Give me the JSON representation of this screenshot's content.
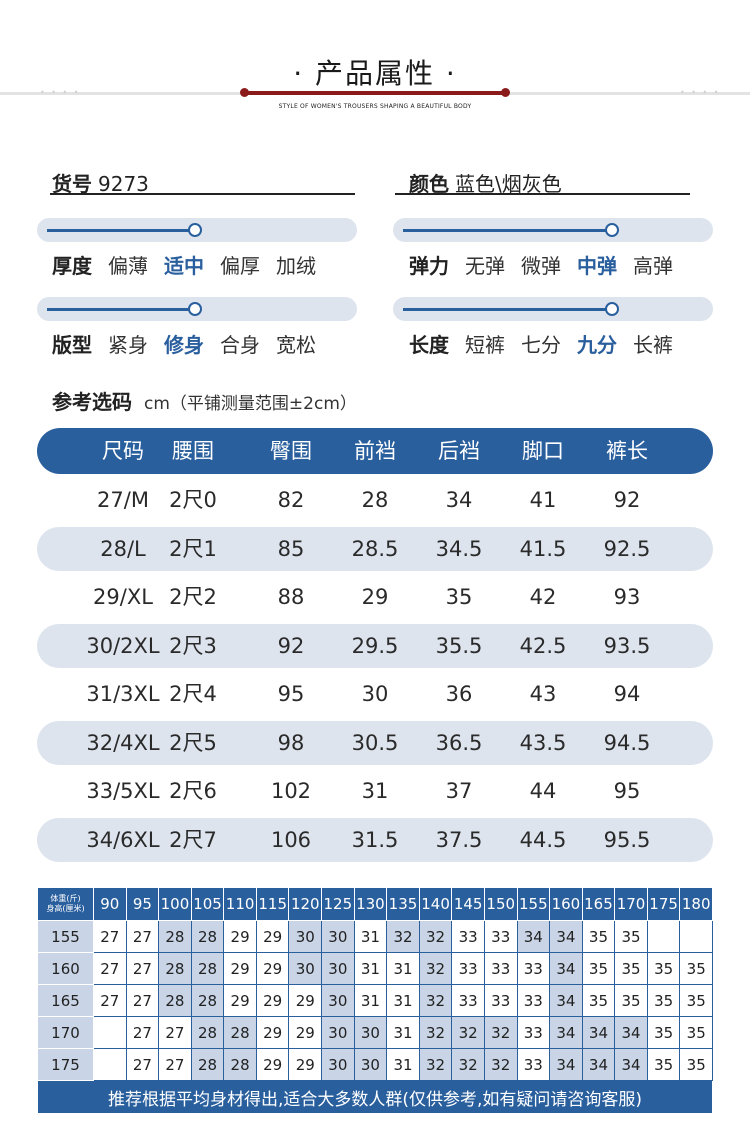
{
  "header": {
    "title": "· 产品属性 ·",
    "subtitle": "STYLE OF WOMEN'S TROUSERS SHAPING A BEAUTIFUL BODY",
    "accent_color": "#8b1a1a"
  },
  "info": {
    "item_no_label": "货号",
    "item_no_value": "9273",
    "color_label": "颜色",
    "color_value": "蓝色\\烟灰色"
  },
  "attributes": [
    {
      "label": "厚度",
      "options": [
        "偏薄",
        "适中",
        "偏厚",
        "加绒"
      ],
      "selected": 1
    },
    {
      "label": "弹力",
      "options": [
        "无弹",
        "微弹",
        "中弹",
        "高弹"
      ],
      "selected": 2
    },
    {
      "label": "版型",
      "options": [
        "紧身",
        "修身",
        "合身",
        "宽松"
      ],
      "selected": 1
    },
    {
      "label": "长度",
      "options": [
        "短裤",
        "七分",
        "九分",
        "长裤"
      ],
      "selected": 2
    }
  ],
  "reference": {
    "label": "参考选码",
    "note": "cm（平铺测量范围±2cm）"
  },
  "size_table": {
    "headers": [
      "尺码",
      "腰围",
      "臀围",
      "前裆",
      "后裆",
      "脚口",
      "裤长"
    ],
    "rows": [
      [
        "27/M",
        "2尺0",
        "82",
        "28",
        "34",
        "41",
        "92"
      ],
      [
        "28/L",
        "2尺1",
        "85",
        "28.5",
        "34.5",
        "41.5",
        "92.5"
      ],
      [
        "29/XL",
        "2尺2",
        "88",
        "29",
        "35",
        "42",
        "93"
      ],
      [
        "30/2XL",
        "2尺3",
        "92",
        "29.5",
        "35.5",
        "42.5",
        "93.5"
      ],
      [
        "31/3XL",
        "2尺4",
        "95",
        "30",
        "36",
        "43",
        "94"
      ],
      [
        "32/4XL",
        "2尺5",
        "98",
        "30.5",
        "36.5",
        "43.5",
        "94.5"
      ],
      [
        "33/5XL",
        "2尺6",
        "102",
        "31",
        "37",
        "44",
        "95"
      ],
      [
        "34/6XL",
        "2尺7",
        "106",
        "31.5",
        "37.5",
        "44.5",
        "95.5"
      ]
    ]
  },
  "weight_table": {
    "corner_top": "体重(斤)",
    "corner_bottom": "身高(厘米)",
    "weights": [
      "90",
      "95",
      "100",
      "105",
      "110",
      "115",
      "120",
      "125",
      "130",
      "135",
      "140",
      "145",
      "150",
      "155",
      "160",
      "165",
      "170",
      "175",
      "180"
    ],
    "rows": [
      {
        "height": "155",
        "values": [
          "27",
          "27",
          "28",
          "28",
          "29",
          "29",
          "30",
          "30",
          "31",
          "32",
          "32",
          "33",
          "33",
          "34",
          "34",
          "35",
          "35",
          "",
          ""
        ]
      },
      {
        "height": "160",
        "values": [
          "27",
          "27",
          "28",
          "28",
          "29",
          "29",
          "30",
          "30",
          "31",
          "31",
          "32",
          "33",
          "33",
          "33",
          "34",
          "35",
          "35",
          "35",
          "35"
        ]
      },
      {
        "height": "165",
        "values": [
          "27",
          "27",
          "28",
          "28",
          "29",
          "29",
          "29",
          "30",
          "31",
          "31",
          "32",
          "33",
          "33",
          "33",
          "34",
          "35",
          "35",
          "35",
          "35"
        ]
      },
      {
        "height": "170",
        "values": [
          "",
          "27",
          "27",
          "28",
          "28",
          "29",
          "29",
          "30",
          "30",
          "31",
          "32",
          "32",
          "32",
          "33",
          "34",
          "34",
          "34",
          "35",
          "35"
        ]
      },
      {
        "height": "175",
        "values": [
          "",
          "27",
          "27",
          "28",
          "28",
          "29",
          "29",
          "30",
          "30",
          "31",
          "32",
          "32",
          "32",
          "33",
          "34",
          "34",
          "34",
          "35",
          "35"
        ]
      }
    ],
    "footer": "推荐根据平均身材得出,适合大多数人群(仅供参考,如有疑问请咨询客服)"
  },
  "colors": {
    "primary": "#2a5f9e",
    "band": "#dde4ee",
    "cell_highlight": "#c9d5e6"
  }
}
